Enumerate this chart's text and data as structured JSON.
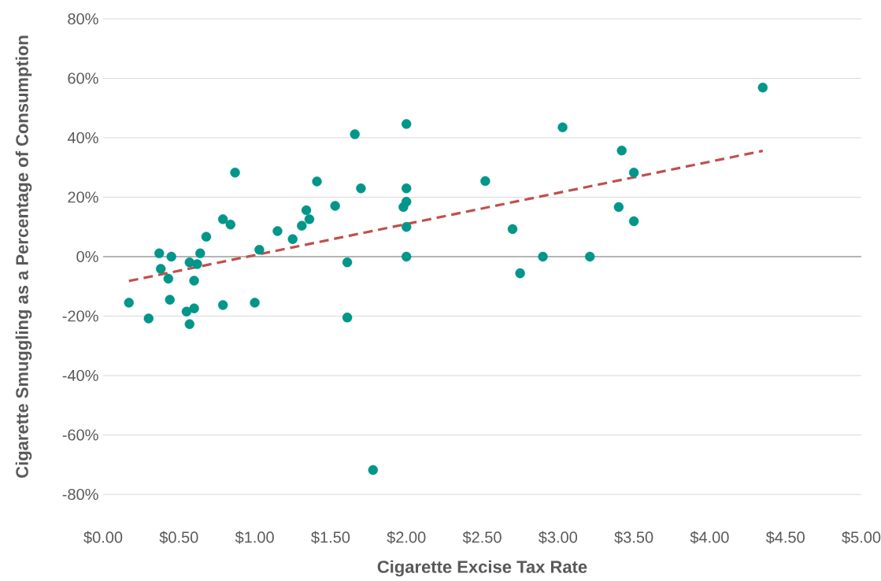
{
  "chart_data": {
    "type": "scatter",
    "xlabel": "Cigarette Excise Tax Rate",
    "ylabel": "Cigarette Smuggling as a Percentage of Consumption",
    "xlim": [
      0,
      5
    ],
    "ylim": [
      -80,
      80
    ],
    "xticks": [
      {
        "value": 0,
        "label": "$0.00"
      },
      {
        "value": 0.5,
        "label": "$0.50"
      },
      {
        "value": 1,
        "label": "$1.00"
      },
      {
        "value": 1.5,
        "label": "$1.50"
      },
      {
        "value": 2,
        "label": "$2.00"
      },
      {
        "value": 2.5,
        "label": "$2.50"
      },
      {
        "value": 3,
        "label": "$3.00"
      },
      {
        "value": 3.5,
        "label": "$3.50"
      },
      {
        "value": 4,
        "label": "$4.00"
      },
      {
        "value": 4.5,
        "label": "$4.50"
      },
      {
        "value": 5,
        "label": "$5.00"
      }
    ],
    "yticks": [
      {
        "value": -80,
        "label": "-80%"
      },
      {
        "value": -60,
        "label": "-60%"
      },
      {
        "value": -40,
        "label": "-40%"
      },
      {
        "value": -20,
        "label": "-20%"
      },
      {
        "value": 0,
        "label": "0%"
      },
      {
        "value": 20,
        "label": "20%"
      },
      {
        "value": 40,
        "label": "40%"
      },
      {
        "value": 60,
        "label": "60%"
      },
      {
        "value": 80,
        "label": "80%"
      }
    ],
    "grid": "y",
    "marker": "circle",
    "series": [
      {
        "color": "#00968a",
        "x": [
          0.87,
          0.79,
          0.84,
          0.68,
          1.15,
          0.37,
          0.45,
          0.64,
          1.03,
          0.38,
          0.57,
          0.62,
          0.43,
          0.6,
          0.17,
          0.44,
          0.79,
          1.0,
          0.3,
          0.55,
          0.6,
          0.57,
          2.0,
          1.66,
          1.41,
          1.7,
          2.0,
          2.0,
          1.98,
          1.53,
          1.34,
          1.36,
          1.31,
          1.25,
          2.0,
          2.0,
          1.61,
          1.61,
          2.52,
          3.03,
          3.42,
          3.5,
          3.4,
          3.5,
          2.7,
          2.9,
          3.21,
          2.75,
          4.35,
          1.78
        ],
        "values": [
          28.3,
          12.6,
          10.8,
          6.7,
          8.6,
          1.1,
          0,
          1.1,
          2.3,
          -4.1,
          -1.9,
          -2.5,
          -7.4,
          -8.1,
          -15.5,
          -14.5,
          -16.3,
          -15.5,
          -20.8,
          -18.5,
          -17.4,
          -22.7,
          44.6,
          41.2,
          25.3,
          23.0,
          23.0,
          18.5,
          16.7,
          17.1,
          15.6,
          12.6,
          10.4,
          5.9,
          10.0,
          0,
          -1.9,
          -20.5,
          25.4,
          43.5,
          35.7,
          28.3,
          16.7,
          11.9,
          9.3,
          0,
          0,
          -5.6,
          56.9,
          -71.8
        ]
      },
      {
        "type": "line",
        "color": "#c0504d",
        "line_style": "dashed",
        "marker": "none",
        "x": [
          0.17,
          4.35
        ],
        "values": [
          -8.2,
          35.6
        ]
      }
    ]
  }
}
